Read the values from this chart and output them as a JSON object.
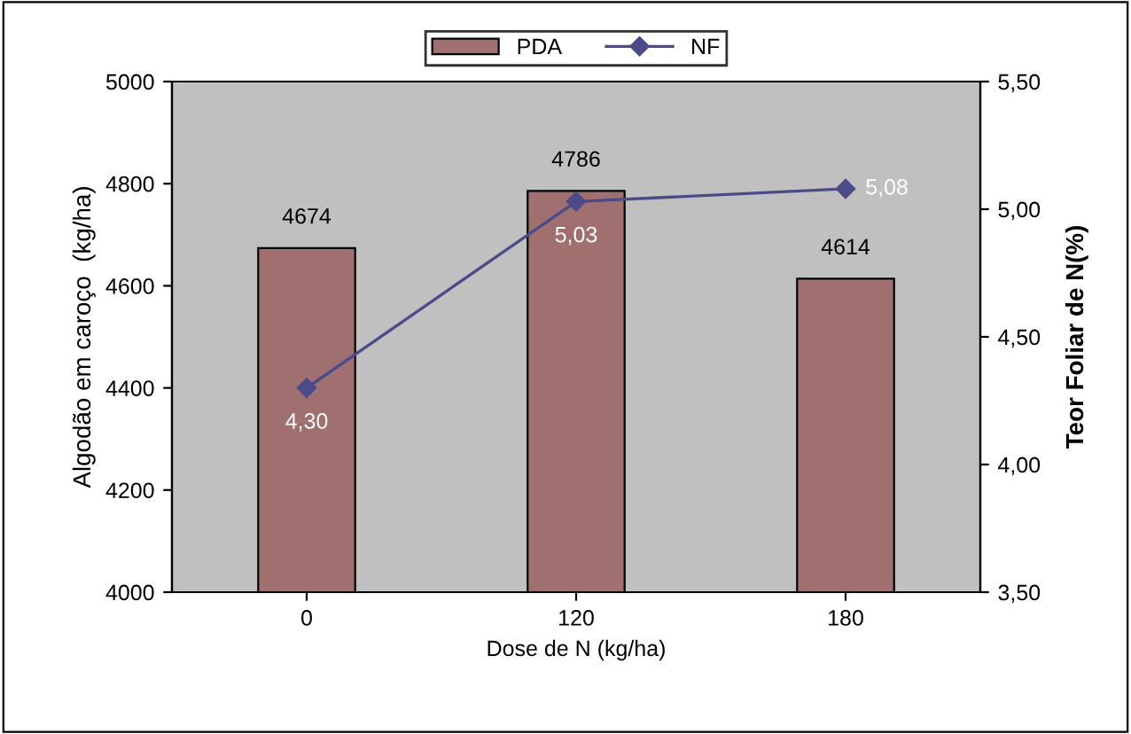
{
  "chart_data": {
    "type": "bar",
    "xlabel": "Dose de N (kg/ha)",
    "ylabel": "Algodão em caroço  (kg/ha)",
    "y2label": "Teor Foliar de N(%)",
    "categories": [
      "0",
      "120",
      "180"
    ],
    "series": [
      {
        "name": "PDA",
        "color": "#a07070",
        "values": [
          4674,
          4786,
          4614
        ],
        "data_labels": true
      },
      {
        "name": "NF",
        "type": "line",
        "axis": "y2",
        "color": "#4b4b8a",
        "marker": "diamond",
        "values": [
          4.3,
          5.03,
          5.08
        ],
        "value_labels": [
          "4,30",
          "5,03",
          "5,08"
        ]
      }
    ],
    "ylim": [
      4000,
      5000
    ],
    "yticks": [
      4000,
      4200,
      4400,
      4600,
      4800,
      5000
    ],
    "y2lim": [
      3.5,
      5.5
    ],
    "y2ticks": [
      {
        "value": 3.5,
        "label": "3,50"
      },
      {
        "value": 4.0,
        "label": "4,00"
      },
      {
        "value": 4.5,
        "label": "4,50"
      },
      {
        "value": 5.0,
        "label": "5,00"
      },
      {
        "value": 5.5,
        "label": "5,50"
      }
    ],
    "legend": "top",
    "grid": false
  }
}
